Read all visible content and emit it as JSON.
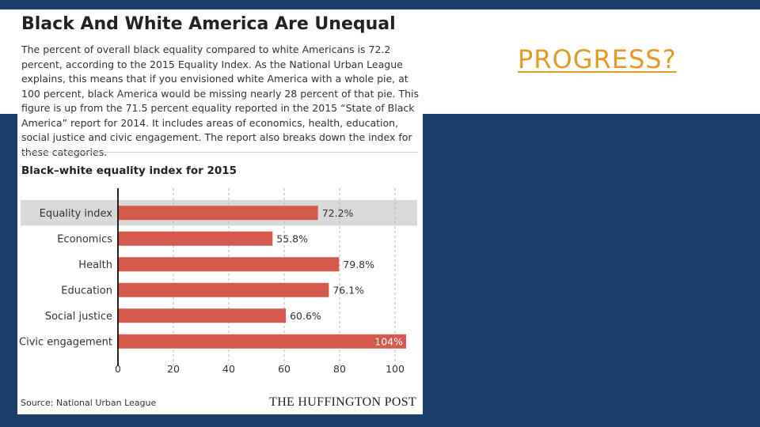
{
  "slide": {
    "title": "PROGRESS?",
    "colors": {
      "background": "#1a3f6a",
      "title_accent": "#e49a26"
    }
  },
  "panel": {
    "headline": "Black And White America Are Unequal",
    "intro": "The percent of overall black equality compared to white Americans is 72.2 percent, according to the 2015 Equality Index. As the National Urban League explains, this means that if you envisioned white America with a whole pie, at 100 percent, black America would be missing nearly 28 percent of that pie. This figure is up from the 71.5 percent equality reported in the 2015 “State of Black America” report for 2014. It includes areas of economics, health, education, social justice and civic engagement. The report also breaks down the index for these categories.",
    "source": "Source: National Urban League",
    "brand": "THE HUFFINGTON POST"
  },
  "chart_data": {
    "type": "bar",
    "orientation": "horizontal",
    "title": "Black–white equality index for 2015",
    "categories": [
      "Equality index",
      "Economics",
      "Health",
      "Education",
      "Social justice",
      "Civic engagement"
    ],
    "values": [
      72.2,
      55.8,
      79.8,
      76.1,
      60.6,
      104
    ],
    "value_labels": [
      "72.2%",
      "55.8%",
      "79.8%",
      "76.1%",
      "60.6%",
      "104%"
    ],
    "highlighted_category": "Equality index",
    "xlim": [
      0,
      105
    ],
    "xticks": [
      0,
      20,
      40,
      60,
      80,
      100
    ],
    "grid": true,
    "colors": {
      "bar": "#d45a4e",
      "highlight_band": "#d9d9d9",
      "grid": "#b5b5b5",
      "axis": "#222222"
    }
  }
}
